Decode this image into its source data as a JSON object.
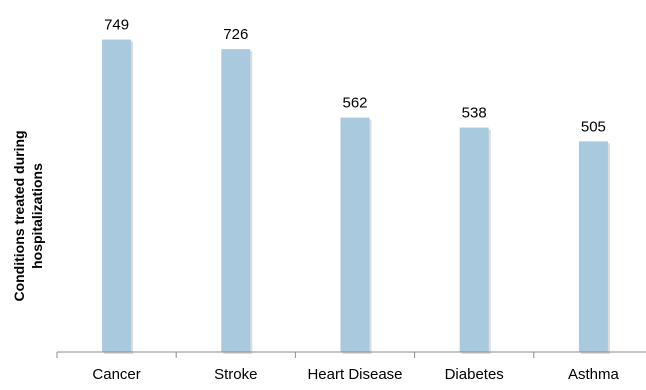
{
  "chart_data": {
    "type": "bar",
    "categories": [
      "Cancer",
      "Stroke",
      "Heart Disease",
      "Diabetes",
      "Asthma"
    ],
    "values": [
      749,
      726,
      562,
      538,
      505
    ],
    "data_labels": [
      "749",
      "726",
      "562",
      "538",
      "505"
    ],
    "title": "",
    "xlabel": "",
    "ylabel_lines": [
      "Conditions treated during",
      "hospitalizations"
    ],
    "ylim": [
      0,
      800
    ],
    "grid": false,
    "legend": "none",
    "colors": {
      "bar": "#a9c9de",
      "bar_shadow": "#c7c7c7",
      "axis": "#8c8c8c",
      "text": "#000000"
    }
  }
}
